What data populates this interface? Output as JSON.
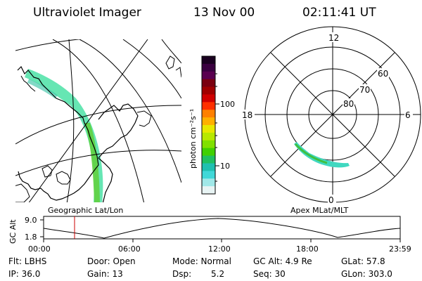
{
  "header": {
    "title": "Ultraviolet Imager",
    "date": "13 Nov 00",
    "time": "02:11:41 UT"
  },
  "colorbar": {
    "unit_label": "photon cm⁻²s⁻¹",
    "ticks": [
      "100",
      "10"
    ],
    "colors": [
      "#1a0020",
      "#3a0040",
      "#5a0050",
      "#7a0010",
      "#a00000",
      "#d00000",
      "#ff3000",
      "#ff8000",
      "#ffb000",
      "#e8e800",
      "#b8e800",
      "#80e000",
      "#40d000",
      "#20c060",
      "#20c0b0",
      "#40d8d8",
      "#a0e8e8",
      "#e8f4f4"
    ]
  },
  "left_panel": {
    "label": "Geographic Lat/Lon"
  },
  "right_panel": {
    "label": "Apex MLat/MLT",
    "mlt_labels": {
      "top": "12",
      "left": "18",
      "right": "6",
      "bottom": "0"
    },
    "lat_labels": [
      "60",
      "70",
      "80"
    ]
  },
  "altitude_plot": {
    "y_label": "GC Alt",
    "y_ticks": [
      "9.0",
      "1.8"
    ],
    "x_ticks": [
      "00:00",
      "06:00",
      "12:00",
      "18:00",
      "23:59"
    ],
    "marker_color": "#cc0000"
  },
  "info": {
    "flt": "Flt: LBHS",
    "door": "Door: Open",
    "mode": "Mode: Normal",
    "gc_alt": "GC Alt: 4.9 Re",
    "glat": "GLat: 57.8",
    "ip": "IP: 36.0",
    "gain": "Gain: 13",
    "dsp_label": "Dsp:",
    "dsp_value": "5.2",
    "seq": "Seq: 30",
    "glon": "GLon: 303.0"
  }
}
